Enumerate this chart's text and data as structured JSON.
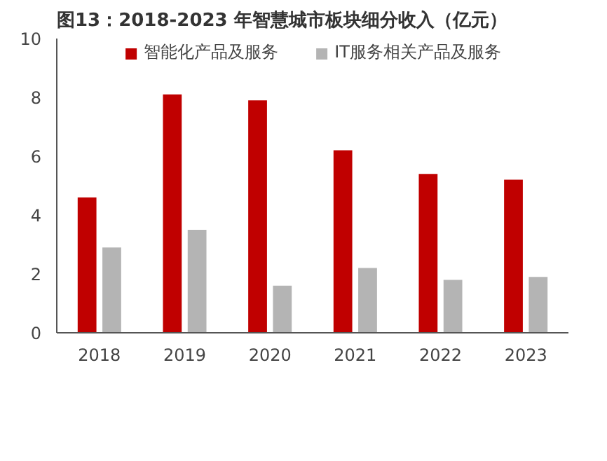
{
  "chart_data": {
    "type": "bar",
    "title": "图13：2018-2023 年智慧城市板块细分收入（亿元）",
    "categories": [
      "2018",
      "2019",
      "2020",
      "2021",
      "2022",
      "2023"
    ],
    "series": [
      {
        "name": "智能化产品及服务",
        "color": "#c00000",
        "values": [
          4.6,
          8.1,
          7.9,
          6.2,
          5.4,
          5.2
        ]
      },
      {
        "name": "IT服务相关产品及服务",
        "color": "#b4b4b4",
        "values": [
          2.9,
          3.5,
          1.6,
          2.2,
          1.8,
          1.9
        ]
      }
    ],
    "ylim": [
      0,
      10
    ],
    "yticks": [
      0,
      2,
      4,
      6,
      8,
      10
    ],
    "grid": false,
    "legend": "top"
  }
}
